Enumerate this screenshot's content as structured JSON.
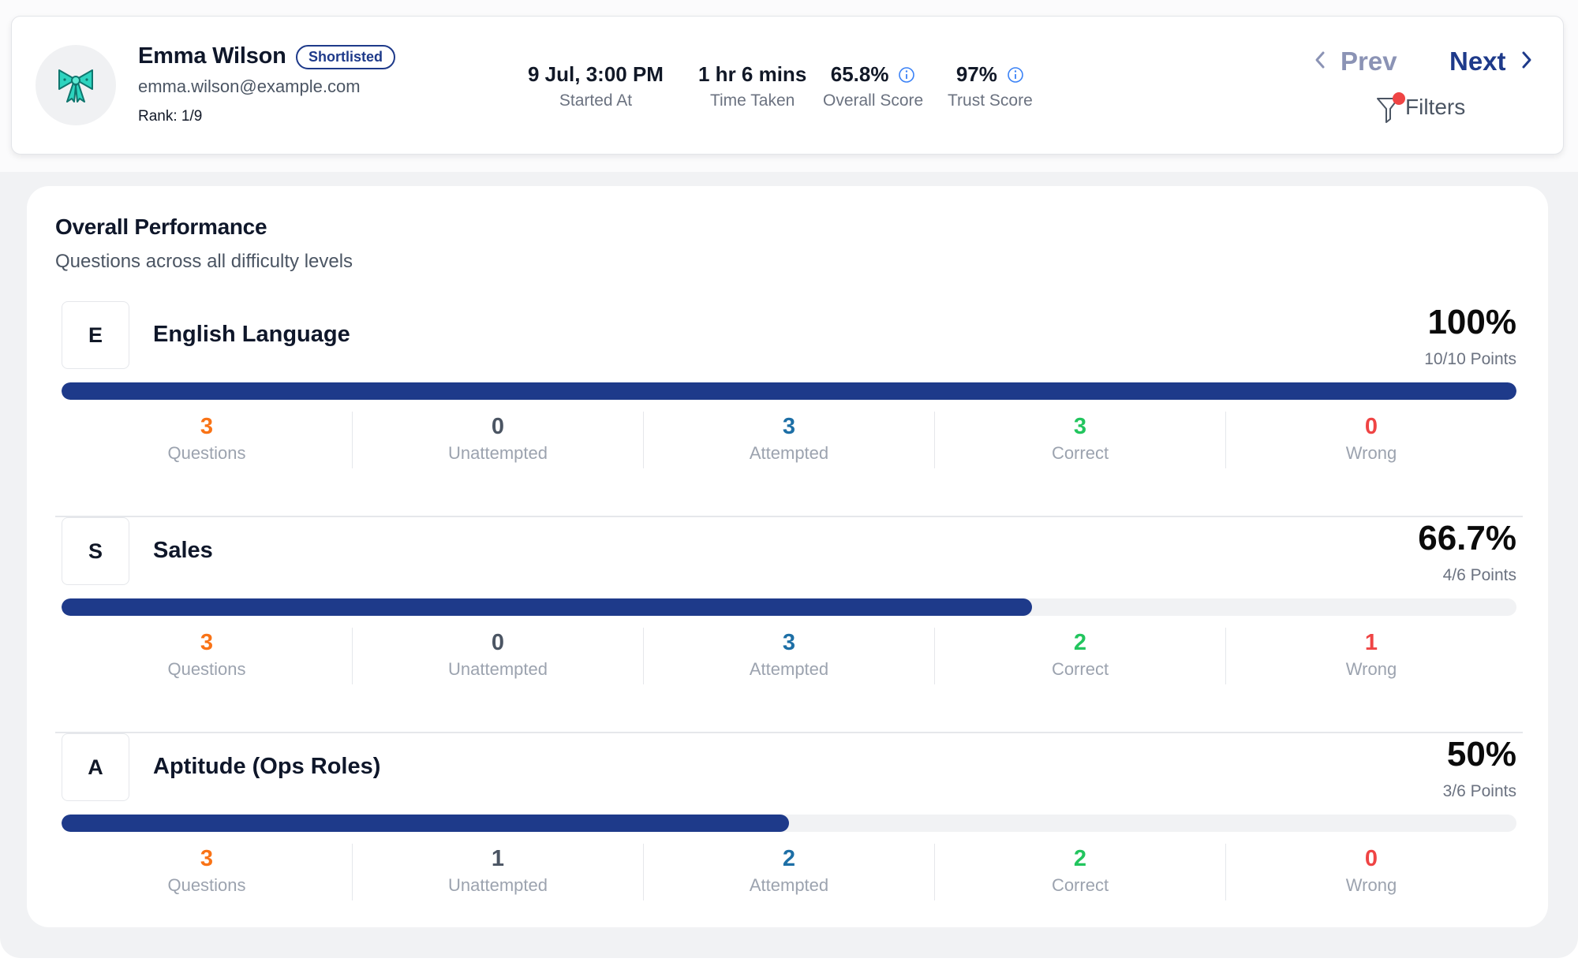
{
  "candidate": {
    "name": "Emma Wilson",
    "status_badge": "Shortlisted",
    "email": "emma.wilson@example.com",
    "rank": "Rank: 1/9",
    "avatar_icon": "bow-ribbon-icon",
    "avatar_color": "#2dd4bf"
  },
  "stats": [
    {
      "value": "9 Jul, 3:00 PM",
      "label": "Started At"
    },
    {
      "value": "1 hr 6 mins",
      "label": "Time Taken"
    },
    {
      "value": "65.8%",
      "label": "Overall Score",
      "icon": "info-icon"
    },
    {
      "value": "97%",
      "label": "Trust Score",
      "icon": "info-icon"
    }
  ],
  "nav": {
    "prev_label": "Prev",
    "next_label": "Next",
    "filters_label": "Filters",
    "filters_active": true
  },
  "performance": {
    "title": "Overall Performance",
    "subtitle": "Questions across all difficulty levels",
    "subjects": [
      {
        "letter": "E",
        "name": "English Language",
        "percent_label": "100%",
        "progress": 1.0,
        "points": "10/10 Points",
        "counts": {
          "questions": "3",
          "unattempted": "0",
          "attempted": "3",
          "correct": "3",
          "wrong": "0"
        }
      },
      {
        "letter": "S",
        "name": "Sales",
        "percent_label": "66.7%",
        "progress": 0.667,
        "points": "4/6 Points",
        "counts": {
          "questions": "3",
          "unattempted": "0",
          "attempted": "3",
          "correct": "2",
          "wrong": "1"
        }
      },
      {
        "letter": "A",
        "name": "Aptitude (Ops Roles)",
        "percent_label": "50%",
        "progress": 0.5,
        "points": "3/6 Points",
        "counts": {
          "questions": "3",
          "unattempted": "1",
          "attempted": "2",
          "correct": "2",
          "wrong": "0"
        }
      }
    ],
    "count_labels": {
      "questions": "Questions",
      "unattempted": "Unattempted",
      "attempted": "Attempted",
      "correct": "Correct",
      "wrong": "Wrong"
    }
  },
  "colors": {
    "brand": "#1e3a8a",
    "questions": "#f97316",
    "unattempted": "#4b5563",
    "attempted": "#1d6fa6",
    "correct": "#22c55e",
    "wrong": "#ef4444"
  }
}
